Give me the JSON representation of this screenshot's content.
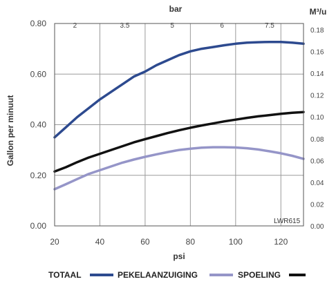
{
  "chart_data": {
    "type": "line",
    "x": [
      20,
      25,
      30,
      35,
      40,
      45,
      50,
      55,
      60,
      65,
      70,
      75,
      80,
      85,
      90,
      95,
      100,
      105,
      110,
      115,
      120,
      125,
      130
    ],
    "series": [
      {
        "name": "TOTAAL",
        "color": "#2d4a8f",
        "values": [
          0.35,
          0.39,
          0.43,
          0.465,
          0.5,
          0.53,
          0.56,
          0.59,
          0.61,
          0.635,
          0.655,
          0.675,
          0.69,
          0.7,
          0.707,
          0.714,
          0.72,
          0.724,
          0.726,
          0.727,
          0.727,
          0.724,
          0.72
        ]
      },
      {
        "name": "PEKELAANZUIGING",
        "color": "#9595c8",
        "values": [
          0.145,
          0.165,
          0.185,
          0.205,
          0.22,
          0.235,
          0.25,
          0.262,
          0.273,
          0.283,
          0.292,
          0.3,
          0.305,
          0.309,
          0.311,
          0.311,
          0.31,
          0.307,
          0.302,
          0.295,
          0.287,
          0.277,
          0.265
        ]
      },
      {
        "name": "SPOELING",
        "color": "#111111",
        "values": [
          0.215,
          0.232,
          0.252,
          0.27,
          0.285,
          0.3,
          0.315,
          0.33,
          0.343,
          0.355,
          0.367,
          0.378,
          0.388,
          0.397,
          0.405,
          0.413,
          0.42,
          0.427,
          0.433,
          0.438,
          0.443,
          0.447,
          0.45
        ]
      }
    ],
    "xlabel": "psi",
    "xticks": [
      "20",
      "40",
      "60",
      "80",
      "100",
      "120"
    ],
    "xlim": [
      20,
      130
    ],
    "ylabel": "Gallon per minuut",
    "yticks": [
      "0.00",
      "0.20",
      "0.40",
      "0.60",
      "0.80"
    ],
    "ylim": [
      0,
      0.8
    ],
    "top_axis": {
      "label": "bar",
      "ticks": [
        "2",
        "3.5",
        "5",
        "6",
        "7.5"
      ],
      "tick_psi": [
        29,
        51,
        72,
        94,
        115
      ]
    },
    "right_axis": {
      "label": "M³/u",
      "ticks": [
        "0.00",
        "0.02",
        "0.04",
        "0.06",
        "0.08",
        "0.10",
        "0.12",
        "0.14",
        "0.16",
        "0.18"
      ]
    },
    "annotation": "LWR615",
    "grid": true,
    "legend_position": "bottom"
  }
}
